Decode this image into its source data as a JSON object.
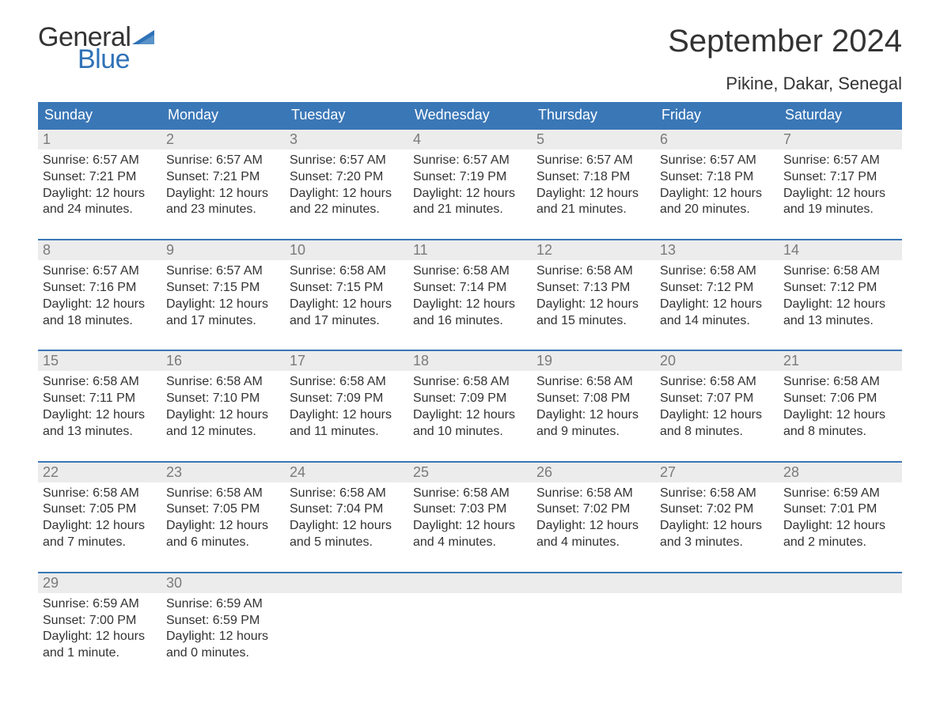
{
  "logo": {
    "word1": "General",
    "word2": "Blue",
    "text_color": "#333333",
    "accent_color": "#2f72b8"
  },
  "title": {
    "month": "September 2024",
    "location": "Pikine, Dakar, Senegal",
    "month_fontsize": 40,
    "location_fontsize": 22
  },
  "styling": {
    "header_bg": "#3a77b7",
    "header_text": "#ffffff",
    "daynum_bg": "#ececec",
    "daynum_color": "#7a7a7a",
    "body_text": "#333333",
    "row_border": "#3a77b7",
    "page_bg": "#ffffff",
    "weekday_fontsize": 18,
    "daynum_fontsize": 18,
    "info_fontsize": 16
  },
  "weekdays": [
    "Sunday",
    "Monday",
    "Tuesday",
    "Wednesday",
    "Thursday",
    "Friday",
    "Saturday"
  ],
  "weeks": [
    [
      {
        "n": "1",
        "sunrise": "Sunrise: 6:57 AM",
        "sunset": "Sunset: 7:21 PM",
        "d1": "Daylight: 12 hours",
        "d2": "and 24 minutes."
      },
      {
        "n": "2",
        "sunrise": "Sunrise: 6:57 AM",
        "sunset": "Sunset: 7:21 PM",
        "d1": "Daylight: 12 hours",
        "d2": "and 23 minutes."
      },
      {
        "n": "3",
        "sunrise": "Sunrise: 6:57 AM",
        "sunset": "Sunset: 7:20 PM",
        "d1": "Daylight: 12 hours",
        "d2": "and 22 minutes."
      },
      {
        "n": "4",
        "sunrise": "Sunrise: 6:57 AM",
        "sunset": "Sunset: 7:19 PM",
        "d1": "Daylight: 12 hours",
        "d2": "and 21 minutes."
      },
      {
        "n": "5",
        "sunrise": "Sunrise: 6:57 AM",
        "sunset": "Sunset: 7:18 PM",
        "d1": "Daylight: 12 hours",
        "d2": "and 21 minutes."
      },
      {
        "n": "6",
        "sunrise": "Sunrise: 6:57 AM",
        "sunset": "Sunset: 7:18 PM",
        "d1": "Daylight: 12 hours",
        "d2": "and 20 minutes."
      },
      {
        "n": "7",
        "sunrise": "Sunrise: 6:57 AM",
        "sunset": "Sunset: 7:17 PM",
        "d1": "Daylight: 12 hours",
        "d2": "and 19 minutes."
      }
    ],
    [
      {
        "n": "8",
        "sunrise": "Sunrise: 6:57 AM",
        "sunset": "Sunset: 7:16 PM",
        "d1": "Daylight: 12 hours",
        "d2": "and 18 minutes."
      },
      {
        "n": "9",
        "sunrise": "Sunrise: 6:57 AM",
        "sunset": "Sunset: 7:15 PM",
        "d1": "Daylight: 12 hours",
        "d2": "and 17 minutes."
      },
      {
        "n": "10",
        "sunrise": "Sunrise: 6:58 AM",
        "sunset": "Sunset: 7:15 PM",
        "d1": "Daylight: 12 hours",
        "d2": "and 17 minutes."
      },
      {
        "n": "11",
        "sunrise": "Sunrise: 6:58 AM",
        "sunset": "Sunset: 7:14 PM",
        "d1": "Daylight: 12 hours",
        "d2": "and 16 minutes."
      },
      {
        "n": "12",
        "sunrise": "Sunrise: 6:58 AM",
        "sunset": "Sunset: 7:13 PM",
        "d1": "Daylight: 12 hours",
        "d2": "and 15 minutes."
      },
      {
        "n": "13",
        "sunrise": "Sunrise: 6:58 AM",
        "sunset": "Sunset: 7:12 PM",
        "d1": "Daylight: 12 hours",
        "d2": "and 14 minutes."
      },
      {
        "n": "14",
        "sunrise": "Sunrise: 6:58 AM",
        "sunset": "Sunset: 7:12 PM",
        "d1": "Daylight: 12 hours",
        "d2": "and 13 minutes."
      }
    ],
    [
      {
        "n": "15",
        "sunrise": "Sunrise: 6:58 AM",
        "sunset": "Sunset: 7:11 PM",
        "d1": "Daylight: 12 hours",
        "d2": "and 13 minutes."
      },
      {
        "n": "16",
        "sunrise": "Sunrise: 6:58 AM",
        "sunset": "Sunset: 7:10 PM",
        "d1": "Daylight: 12 hours",
        "d2": "and 12 minutes."
      },
      {
        "n": "17",
        "sunrise": "Sunrise: 6:58 AM",
        "sunset": "Sunset: 7:09 PM",
        "d1": "Daylight: 12 hours",
        "d2": "and 11 minutes."
      },
      {
        "n": "18",
        "sunrise": "Sunrise: 6:58 AM",
        "sunset": "Sunset: 7:09 PM",
        "d1": "Daylight: 12 hours",
        "d2": "and 10 minutes."
      },
      {
        "n": "19",
        "sunrise": "Sunrise: 6:58 AM",
        "sunset": "Sunset: 7:08 PM",
        "d1": "Daylight: 12 hours",
        "d2": "and 9 minutes."
      },
      {
        "n": "20",
        "sunrise": "Sunrise: 6:58 AM",
        "sunset": "Sunset: 7:07 PM",
        "d1": "Daylight: 12 hours",
        "d2": "and 8 minutes."
      },
      {
        "n": "21",
        "sunrise": "Sunrise: 6:58 AM",
        "sunset": "Sunset: 7:06 PM",
        "d1": "Daylight: 12 hours",
        "d2": "and 8 minutes."
      }
    ],
    [
      {
        "n": "22",
        "sunrise": "Sunrise: 6:58 AM",
        "sunset": "Sunset: 7:05 PM",
        "d1": "Daylight: 12 hours",
        "d2": "and 7 minutes."
      },
      {
        "n": "23",
        "sunrise": "Sunrise: 6:58 AM",
        "sunset": "Sunset: 7:05 PM",
        "d1": "Daylight: 12 hours",
        "d2": "and 6 minutes."
      },
      {
        "n": "24",
        "sunrise": "Sunrise: 6:58 AM",
        "sunset": "Sunset: 7:04 PM",
        "d1": "Daylight: 12 hours",
        "d2": "and 5 minutes."
      },
      {
        "n": "25",
        "sunrise": "Sunrise: 6:58 AM",
        "sunset": "Sunset: 7:03 PM",
        "d1": "Daylight: 12 hours",
        "d2": "and 4 minutes."
      },
      {
        "n": "26",
        "sunrise": "Sunrise: 6:58 AM",
        "sunset": "Sunset: 7:02 PM",
        "d1": "Daylight: 12 hours",
        "d2": "and 4 minutes."
      },
      {
        "n": "27",
        "sunrise": "Sunrise: 6:58 AM",
        "sunset": "Sunset: 7:02 PM",
        "d1": "Daylight: 12 hours",
        "d2": "and 3 minutes."
      },
      {
        "n": "28",
        "sunrise": "Sunrise: 6:59 AM",
        "sunset": "Sunset: 7:01 PM",
        "d1": "Daylight: 12 hours",
        "d2": "and 2 minutes."
      }
    ],
    [
      {
        "n": "29",
        "sunrise": "Sunrise: 6:59 AM",
        "sunset": "Sunset: 7:00 PM",
        "d1": "Daylight: 12 hours",
        "d2": "and 1 minute."
      },
      {
        "n": "30",
        "sunrise": "Sunrise: 6:59 AM",
        "sunset": "Sunset: 6:59 PM",
        "d1": "Daylight: 12 hours",
        "d2": "and 0 minutes."
      },
      {
        "empty": true
      },
      {
        "empty": true
      },
      {
        "empty": true
      },
      {
        "empty": true
      },
      {
        "empty": true
      }
    ]
  ]
}
